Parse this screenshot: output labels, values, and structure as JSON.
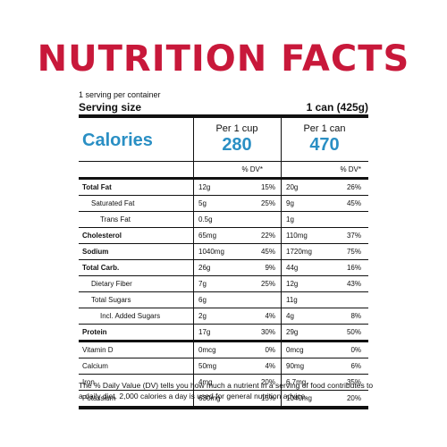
{
  "title": "NUTRITION FACTS",
  "servings_per_container": "1 serving per container",
  "serving_size_label": "Serving size",
  "serving_size_value": "1 can (425g)",
  "calories": {
    "label": "Calories",
    "col1_header": "Per 1 cup",
    "col1_value": "280",
    "col2_header": "Per 1 can",
    "col2_value": "470"
  },
  "dv_header": "% DV*",
  "nutrients": [
    {
      "name": "Total Fat",
      "bold": true,
      "indent": 0,
      "a1": "12g",
      "p1": "15%",
      "a2": "20g",
      "p2": "26%"
    },
    {
      "name": "Saturated Fat",
      "bold": false,
      "indent": 1,
      "a1": "5g",
      "p1": "25%",
      "a2": "9g",
      "p2": "45%"
    },
    {
      "name": "Trans Fat",
      "bold": false,
      "indent": 2,
      "a1": "0.5g",
      "p1": "",
      "a2": "1g",
      "p2": ""
    },
    {
      "name": "Cholesterol",
      "bold": true,
      "indent": 0,
      "a1": "65mg",
      "p1": "22%",
      "a2": "110mg",
      "p2": "37%"
    },
    {
      "name": "Sodium",
      "bold": true,
      "indent": 0,
      "a1": "1040mg",
      "p1": "45%",
      "a2": "1720mg",
      "p2": "75%"
    },
    {
      "name": "Total Carb.",
      "bold": true,
      "indent": 0,
      "a1": "26g",
      "p1": "9%",
      "a2": "44g",
      "p2": "16%"
    },
    {
      "name": "Dietary Fiber",
      "bold": false,
      "indent": 1,
      "a1": "7g",
      "p1": "25%",
      "a2": "12g",
      "p2": "43%"
    },
    {
      "name": "Total Sugars",
      "bold": false,
      "indent": 1,
      "a1": "6g",
      "p1": "",
      "a2": "11g",
      "p2": ""
    },
    {
      "name": "Incl. Added Sugars",
      "bold": false,
      "indent": 2,
      "a1": "2g",
      "p1": "4%",
      "a2": "4g",
      "p2": "8%"
    },
    {
      "name": "Protein",
      "bold": true,
      "indent": 0,
      "a1": "17g",
      "p1": "30%",
      "a2": "29g",
      "p2": "50%"
    }
  ],
  "vitamins": [
    {
      "name": "Vitamin D",
      "a1": "0mcg",
      "p1": "0%",
      "a2": "0mcg",
      "p2": "0%"
    },
    {
      "name": "Calcium",
      "a1": "50mg",
      "p1": "4%",
      "a2": "90mg",
      "p2": "6%"
    },
    {
      "name": "Iron",
      "a1": "4mg",
      "p1": "20%",
      "a2": "6.7mg",
      "p2": "35%"
    },
    {
      "name": "Potassium",
      "a1": "630mg",
      "p1": "15%",
      "a2": "1040mg",
      "p2": "20%"
    }
  ],
  "footnote": "The % Daily Value (DV) tells you how much a nutrient in a serving of food contributes to a daily diet. 2,000 calories a day is used for general nutrition advice."
}
